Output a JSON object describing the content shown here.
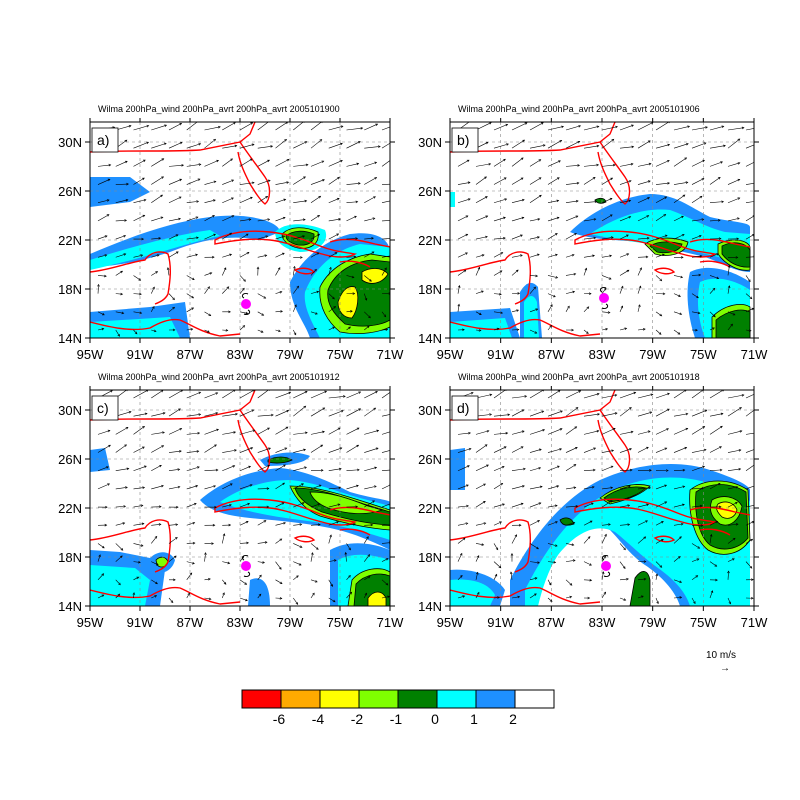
{
  "panels": [
    {
      "id": "a",
      "tag": "a)",
      "title": "Wilma 200hPa_wind 200hPa_avrt 200hPa_avrt 2005101900"
    },
    {
      "id": "b",
      "tag": "b)",
      "title": "Wilma 200hPa_wind 200hPa_avrt 200hPa_avrt 2005101906"
    },
    {
      "id": "c",
      "tag": "c)",
      "title": "Wilma 200hPa_wind 200hPa_avrt 200hPa_avrt 2005101912"
    },
    {
      "id": "d",
      "tag": "d)",
      "title": "Wilma 200hPa_wind 200hPa_avrt 200hPa_avrt 2005101918"
    }
  ],
  "lat_ticks": [
    "30N",
    "26N",
    "22N",
    "18N",
    "14N"
  ],
  "lon_ticks": [
    "95W",
    "91W",
    "87W",
    "83W",
    "79W",
    "75W",
    "71W"
  ],
  "reference_vector": {
    "label": "10 m/s",
    "arrow": "→"
  },
  "colorbar": {
    "colors": [
      "#ff0000",
      "#ffaa00",
      "#ffff00",
      "#7fff00",
      "#008000",
      "#00ffff",
      "#1e90ff",
      "#ffffff"
    ],
    "labels": [
      "-6",
      "-4",
      "-2",
      "-1",
      "0",
      "1",
      "2"
    ]
  },
  "colors": {
    "coastline": "#ff0000",
    "hurricane_symbol": "#ff00ff",
    "contour": "#000000"
  }
}
